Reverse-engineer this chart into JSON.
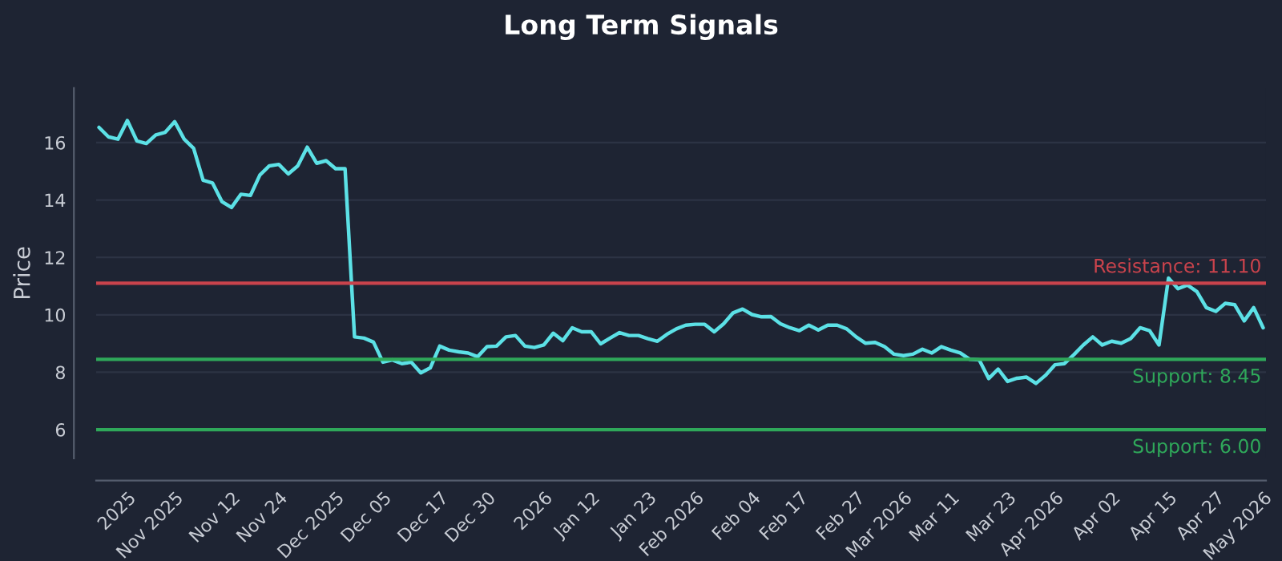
{
  "chart_data": {
    "type": "line",
    "title": "Long Term Signals",
    "ylabel": "Price",
    "categories": [
      null,
      null,
      null,
      "2025",
      null,
      null,
      null,
      null,
      "Nov 2025",
      null,
      null,
      null,
      null,
      null,
      "Nov 12",
      null,
      null,
      null,
      null,
      "Nov 24",
      null,
      null,
      null,
      null,
      null,
      "Dec 2025",
      null,
      null,
      null,
      null,
      "Dec 05",
      null,
      null,
      null,
      null,
      null,
      "Dec 17",
      null,
      null,
      null,
      null,
      "Dec 30",
      null,
      null,
      null,
      null,
      null,
      "2026",
      null,
      null,
      null,
      null,
      "Jan 12",
      null,
      null,
      null,
      null,
      null,
      "Jan 23",
      null,
      null,
      null,
      null,
      "Feb 2026",
      null,
      null,
      null,
      null,
      null,
      "Feb 04",
      null,
      null,
      null,
      null,
      "Feb 17",
      null,
      null,
      null,
      null,
      null,
      "Feb 27",
      null,
      null,
      null,
      null,
      "Mar 2026",
      null,
      null,
      null,
      null,
      "Mar 11",
      null,
      null,
      null,
      null,
      null,
      "Mar 23",
      null,
      null,
      null,
      null,
      "Apr 2026",
      null,
      null,
      null,
      null,
      null,
      "Apr 02",
      null,
      null,
      null,
      null,
      null,
      "Apr 15",
      null,
      null,
      null,
      null,
      "Apr 27",
      null,
      null,
      null,
      null,
      "May 2026"
    ],
    "ylim": [
      5,
      17.9
    ],
    "yticks": [
      6,
      8,
      10,
      12,
      14,
      16
    ],
    "grid": "y",
    "marker": "none",
    "line_style": "solid",
    "series": [
      {
        "color": "#5ce1e6",
        "values": [
          16.53,
          16.2,
          16.12,
          16.77,
          16.06,
          15.97,
          16.27,
          16.36,
          16.73,
          16.12,
          15.8,
          14.69,
          14.59,
          13.94,
          13.74,
          14.2,
          14.16,
          14.87,
          15.19,
          15.24,
          14.91,
          15.19,
          15.84,
          15.28,
          15.37,
          15.09,
          15.09,
          9.23,
          9.19,
          9.05,
          8.35,
          8.43,
          8.3,
          8.35,
          7.98,
          8.15,
          8.91,
          8.77,
          8.71,
          8.67,
          8.54,
          8.89,
          8.91,
          9.23,
          9.28,
          8.91,
          8.86,
          8.95,
          9.36,
          9.1,
          9.55,
          9.41,
          9.41,
          8.99,
          9.19,
          9.38,
          9.28,
          9.28,
          9.17,
          9.08,
          9.32,
          9.51,
          9.64,
          9.67,
          9.67,
          9.41,
          9.69,
          10.07,
          10.2,
          10.01,
          9.93,
          9.94,
          9.69,
          9.55,
          9.45,
          9.64,
          9.47,
          9.64,
          9.64,
          9.51,
          9.23,
          9.01,
          9.04,
          8.89,
          8.63,
          8.58,
          8.63,
          8.8,
          8.67,
          8.89,
          8.77,
          8.67,
          8.45,
          8.43,
          7.78,
          8.11,
          7.68,
          7.79,
          7.83,
          7.61,
          7.89,
          8.26,
          8.3,
          8.61,
          8.95,
          9.23,
          8.95,
          9.08,
          9.01,
          9.17,
          9.55,
          9.45,
          8.95,
          11.28,
          10.91,
          11.04,
          10.81,
          10.25,
          10.12,
          10.4,
          10.35,
          9.79,
          10.25,
          9.55
        ]
      }
    ],
    "ref_lines": [
      {
        "axis": "y",
        "value": 11.1,
        "label": "Resistance: 11.10",
        "color": "#c9434c"
      },
      {
        "axis": "y",
        "value": 8.45,
        "label": "Support: 8.45",
        "color": "#2fa85a"
      },
      {
        "axis": "y",
        "value": 6.0,
        "label": "Support: 6.00",
        "color": "#2fa85a"
      }
    ]
  }
}
